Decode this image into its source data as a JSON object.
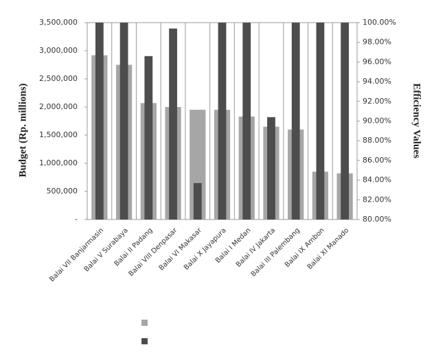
{
  "chart_data": {
    "type": "bar",
    "y_label": "Budget (Rp. millions)",
    "y2_label": "Efficiency Values",
    "categories": [
      "Balai VII Banjarmasin",
      "Balai V Surabaya",
      "Balai II Padang",
      "Balai VIII Denpasar",
      "Balai VI Makasar",
      "Balai X Jayapura",
      "Balai I Medan",
      "Balai IV Jakarta",
      "Balai III Palembang",
      "Balai IX Ambon",
      "Balai XI Manado"
    ],
    "series": [
      {
        "color": "#a6a6a6",
        "values": [
          2920000,
          2750000,
          2070000,
          2000000,
          1950000,
          1950000,
          1830000,
          1650000,
          1600000,
          850000,
          820000
        ]
      },
      {
        "color": "#4d4d4d",
        "axis": "y2",
        "values": [
          100,
          100,
          96.6,
          99.4,
          83.7,
          100,
          100,
          90.4,
          100,
          100,
          100
        ]
      }
    ],
    "ylim": [
      0,
      3500000
    ],
    "yticks": [
      {
        "value": 0,
        "label": "-"
      },
      {
        "value": 500000,
        "label": "500,000"
      },
      {
        "value": 1000000,
        "label": "1,000,000"
      },
      {
        "value": 1500000,
        "label": "1,500,000"
      },
      {
        "value": 2000000,
        "label": "2,000,000"
      },
      {
        "value": 2500000,
        "label": "2,500,000"
      },
      {
        "value": 3000000,
        "label": "3,000,000"
      },
      {
        "value": 3500000,
        "label": "3,500,000"
      }
    ],
    "y2lim": [
      80,
      100
    ],
    "y2ticks": [
      {
        "value": 80,
        "label": "80.00%"
      },
      {
        "value": 82,
        "label": "82.00%"
      },
      {
        "value": 84,
        "label": "84.00%"
      },
      {
        "value": 86,
        "label": "86.00%"
      },
      {
        "value": 88,
        "label": "88.00%"
      },
      {
        "value": 90,
        "label": "90.00%"
      },
      {
        "value": 92,
        "label": "92.00%"
      },
      {
        "value": 94,
        "label": "94.00%"
      },
      {
        "value": 96,
        "label": "96.00%"
      },
      {
        "value": 98,
        "label": "98.00%"
      },
      {
        "value": 100,
        "label": "100.00%"
      }
    ]
  }
}
